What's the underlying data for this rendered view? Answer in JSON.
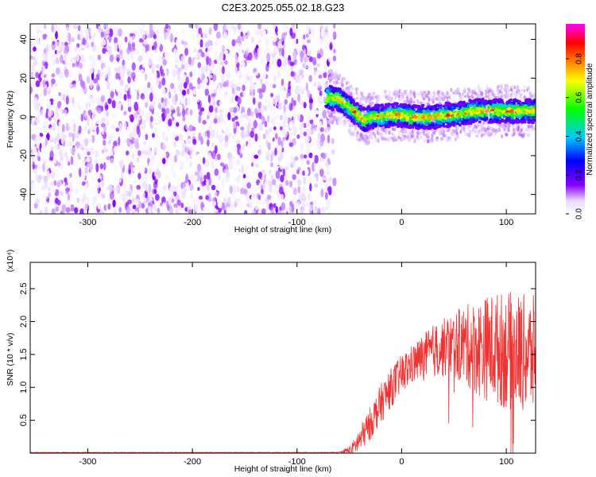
{
  "title": "C2E3.2025.055.02.18.G23",
  "chart_data": [
    {
      "type": "heatmap",
      "name": "spectrogram",
      "xlabel": "Height of straight line (km)",
      "ylabel": "Frequency (Hz)",
      "xlim": [
        -355,
        128
      ],
      "ylim": [
        -50,
        48
      ],
      "xticks": [
        -300,
        -200,
        -100,
        0,
        100
      ],
      "yticks": [
        -40,
        -20,
        0,
        20,
        40
      ],
      "colorbar": {
        "label": "Normalized spectral amplitude",
        "range": [
          0,
          0.98
        ],
        "ticks": [
          0.0,
          0.2,
          0.4,
          0.6,
          0.8
        ],
        "tick_labels": [
          "0.0",
          "0.2",
          "0.4",
          "0.6",
          "0.8"
        ],
        "colormap": [
          "#ffffff",
          "#8a00ff",
          "#0000ff",
          "#00c8ff",
          "#00ff00",
          "#ffff00",
          "#ff8000",
          "#ff0000",
          "#ff00ff"
        ]
      },
      "noise_region": {
        "x_range": [
          -355,
          -68
        ],
        "amplitude_range": [
          0.0,
          0.15
        ]
      },
      "signal_trace": {
        "x": [
          -70,
          -60,
          -50,
          -42,
          -35,
          -30,
          -20,
          -10,
          0,
          10,
          20,
          30,
          40,
          50,
          60,
          70,
          80,
          90,
          100,
          110,
          120,
          128
        ],
        "freq": [
          10,
          9,
          5,
          1,
          -2,
          0,
          0,
          1,
          1,
          0,
          0,
          0,
          1,
          1,
          2,
          3,
          3,
          3,
          3,
          3,
          3,
          3
        ],
        "peak_amplitude": 0.9
      }
    },
    {
      "type": "line",
      "name": "snr",
      "xlabel": "Height of straight line (km)",
      "ylabel": "SNR (10 * v/v)",
      "multiplier": "(x10⁴)",
      "xlim": [
        -355,
        128
      ],
      "ylim": [
        0,
        2.9
      ],
      "xticks": [
        -300,
        -200,
        -100,
        0,
        100
      ],
      "yticks": [
        0.5,
        1.0,
        1.5,
        2.0,
        2.5
      ],
      "ytick_labels": [
        "0.5",
        "1.0",
        "1.5",
        "2.0",
        "2.5"
      ],
      "color": "#ee3333",
      "envelope": {
        "x": [
          -355,
          -60,
          -48,
          -40,
          -30,
          -20,
          -10,
          0,
          10,
          20,
          30,
          40,
          50,
          60,
          70,
          80,
          90,
          100,
          110,
          120,
          128
        ],
        "mean": [
          0.01,
          0.01,
          0.05,
          0.2,
          0.45,
          0.75,
          1.0,
          1.2,
          1.35,
          1.45,
          1.55,
          1.6,
          1.65,
          1.65,
          1.6,
          1.6,
          1.6,
          1.55,
          1.55,
          1.5,
          1.5
        ],
        "spread": [
          0.005,
          0.005,
          0.08,
          0.2,
          0.25,
          0.3,
          0.3,
          0.3,
          0.3,
          0.35,
          0.4,
          0.45,
          0.5,
          0.6,
          0.7,
          0.8,
          0.85,
          0.9,
          0.9,
          0.9,
          0.9
        ]
      }
    }
  ]
}
